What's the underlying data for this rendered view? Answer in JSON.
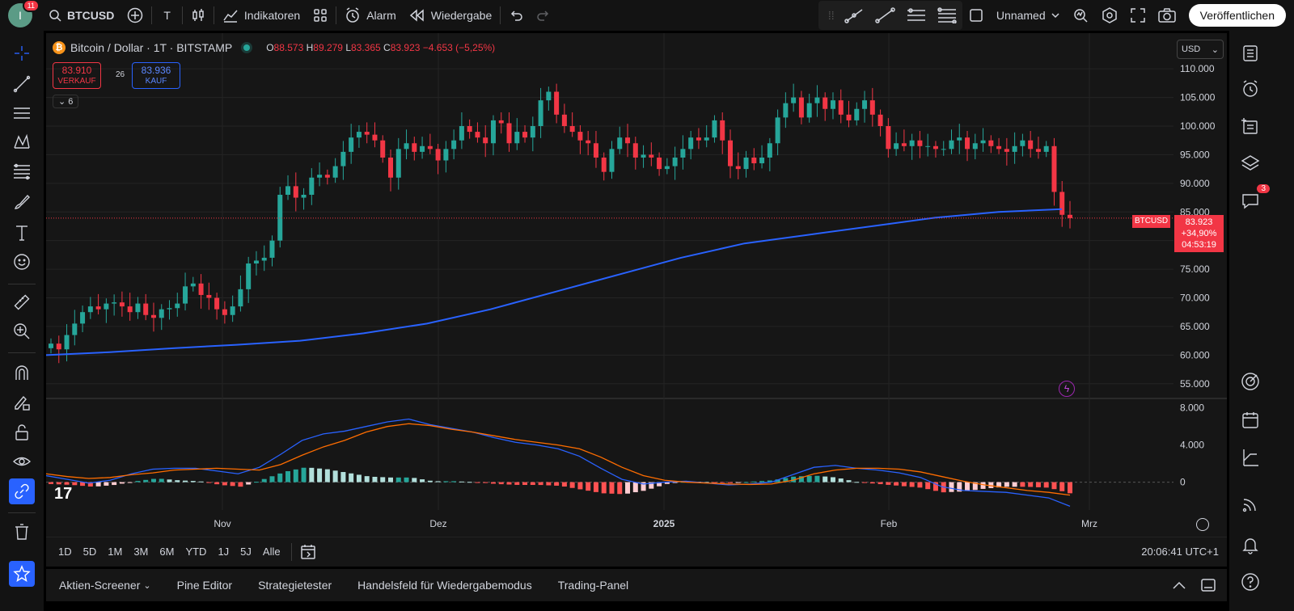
{
  "topbar": {
    "avatar_letter": "I",
    "notifications": "11",
    "symbol": "BTCUSD",
    "indicators_label": "Indikatoren",
    "alarm_label": "Alarm",
    "replay_label": "Wiedergabe",
    "layout_name": "Unnamed",
    "publish_label": "Veröffentlichen"
  },
  "legend": {
    "title": "Bitcoin / Dollar · 1T · BITSTAMP",
    "open_key": "O",
    "open": "88.573",
    "high_key": "H",
    "high": "89.279",
    "low_key": "L",
    "low": "83.365",
    "close_key": "C",
    "close": "83.923",
    "change": "−4.653 (−5,25%)"
  },
  "trade": {
    "sell_price": "83.910",
    "sell_label": "VERKAUF",
    "spread": "26",
    "buy_price": "83.936",
    "buy_label": "KAUF",
    "indicator_count": "6"
  },
  "price_axis": {
    "currency": "USD",
    "ticks": [
      "110.000",
      "105.000",
      "100.000",
      "95.000",
      "90.000",
      "85.000",
      "80.000",
      "75.000",
      "70.000",
      "65.000",
      "60.000",
      "55.000"
    ],
    "last_symbol": "BTCUSD",
    "last_price": "83.923",
    "last_change": "+34,90%",
    "countdown": "04:53:19"
  },
  "macd_axis": {
    "ticks": [
      "8.000",
      "4.000",
      "0"
    ]
  },
  "time_axis": {
    "labels": [
      "Nov",
      "Dez",
      "2025",
      "Feb",
      "Mrz"
    ]
  },
  "range_buttons": [
    "1D",
    "5D",
    "1M",
    "3M",
    "6M",
    "YTD",
    "1J",
    "5J",
    "Alle"
  ],
  "clock": "20:06:41 UTC+1",
  "bottom_tabs": {
    "screener": "Aktien-Screener",
    "pine": "Pine Editor",
    "strategy": "Strategietester",
    "replay_panel": "Handelsfeld für Wiedergabemodus",
    "trading": "Trading-Panel"
  },
  "right_badges": {
    "chat": "3"
  },
  "colors": {
    "up": "#26a69a",
    "down": "#f23645",
    "ma": "#2962ff",
    "macd": "#2962ff",
    "signal": "#ff6d00",
    "bg": "#161616",
    "grid": "#242424"
  },
  "chart_data": {
    "type": "candlestick",
    "ylim": [
      52000,
      112000
    ],
    "closes": [
      62000,
      61000,
      63500,
      65500,
      67500,
      68500,
      68000,
      69000,
      69200,
      68500,
      67500,
      69000,
      67000,
      66500,
      68000,
      68200,
      69000,
      72000,
      72500,
      70500,
      70000,
      68000,
      67000,
      68500,
      71500,
      76000,
      76500,
      77000,
      80000,
      88000,
      89500,
      87500,
      88000,
      91000,
      91500,
      91000,
      93000,
      95500,
      98000,
      99000,
      98500,
      97500,
      94500,
      91000,
      96000,
      97000,
      95500,
      96500,
      96000,
      94000,
      96000,
      97500,
      100000,
      99000,
      98000,
      97000,
      101000,
      100500,
      97000,
      99000,
      98000,
      100000,
      104500,
      106000,
      102000,
      100000,
      99000,
      97500,
      97000,
      94500,
      92000,
      96000,
      98000,
      97000,
      94500,
      95000,
      94500,
      92500,
      93000,
      94500,
      96000,
      98000,
      97500,
      98000,
      101000,
      97500,
      93000,
      92500,
      94500,
      93500,
      94500,
      97000,
      101500,
      104000,
      105000,
      101500,
      104000,
      105000,
      103000,
      104500,
      102000,
      101000,
      103000,
      104500,
      102000,
      100000,
      96000,
      97000,
      96500,
      97500,
      96500,
      96500,
      96000,
      96000,
      97500,
      98000,
      96000,
      97000,
      97500,
      96500,
      96000,
      95500,
      96500,
      97500,
      96000,
      95500,
      96500,
      88500,
      84500,
      83923
    ],
    "ma200": [
      60000,
      60500,
      61200,
      61800,
      62500,
      63800,
      65500,
      68000,
      71000,
      74000,
      77000,
      79500,
      81000,
      82500,
      84000,
      85000,
      85500
    ],
    "macd_line": [
      700,
      300,
      -100,
      200,
      900,
      1400,
      1500,
      1500,
      1200,
      900,
      1600,
      3000,
      4500,
      5200,
      5500,
      6000,
      6500,
      6800,
      6200,
      5800,
      5400,
      4800,
      4300,
      4000,
      3600,
      2800,
      1500,
      300,
      -200,
      0,
      100,
      -100,
      -300,
      -200,
      0,
      800,
      1600,
      1800,
      1500,
      1300,
      1000,
      500,
      -500,
      -900,
      -1000,
      -1100,
      -1400,
      -1700,
      -2600
    ],
    "signal_line": [
      900,
      600,
      400,
      500,
      800,
      1000,
      1300,
      1400,
      1500,
      1400,
      1300,
      1900,
      2900,
      3800,
      4500,
      5400,
      6000,
      6300,
      6100,
      5700,
      5400,
      5000,
      4600,
      4300,
      4000,
      3600,
      2700,
      1600,
      700,
      200,
      0,
      -100,
      -200,
      -250,
      -200,
      200,
      900,
      1300,
      1500,
      1500,
      1400,
      1100,
      600,
      100,
      -300,
      -600,
      -900,
      -1100,
      -1400
    ]
  }
}
